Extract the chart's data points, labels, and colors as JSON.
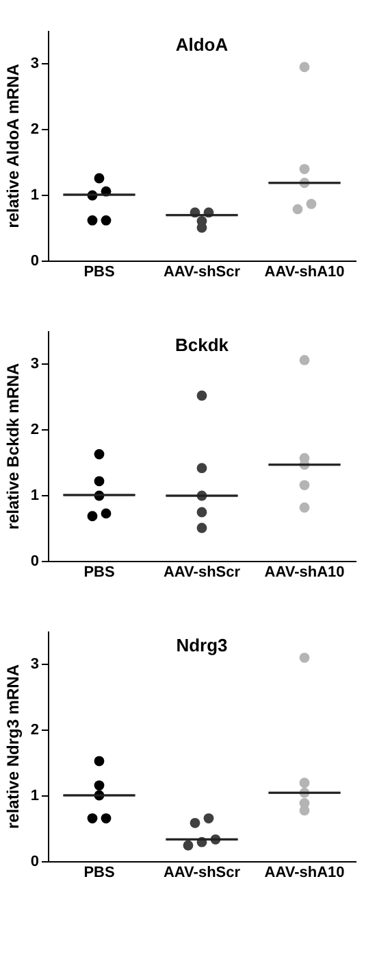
{
  "chart_data": [
    {
      "type": "scatter",
      "title": "AldoA",
      "ylabel": "relative AldoA mRNA",
      "categories": [
        "PBS",
        "AAV-shScr",
        "AAV-shA10"
      ],
      "ylim": [
        0,
        3.5
      ],
      "yticks": [
        0,
        1,
        2,
        3
      ],
      "grid": false,
      "legend": false,
      "marker": "circle",
      "series": [
        {
          "color": "#000000",
          "x": [
            "PBS",
            "PBS",
            "PBS",
            "PBS",
            "PBS"
          ],
          "values": [
            1.25,
            1.05,
            0.99,
            0.61,
            0.61
          ]
        },
        {
          "color": "#404040",
          "x": [
            "AAV-shScr",
            "AAV-shScr",
            "AAV-shScr",
            "AAV-shScr"
          ],
          "values": [
            0.73,
            0.73,
            0.5,
            0.6
          ]
        },
        {
          "color": "#b4b4b4",
          "x": [
            "AAV-shA10",
            "AAV-shA10",
            "AAV-shA10",
            "AAV-shA10",
            "AAV-shA10"
          ],
          "values": [
            2.94,
            1.39,
            1.18,
            0.78,
            0.86
          ]
        },
        {
          "type": "box",
          "color": "#222222",
          "boxes": [
            {
              "low": 1.0,
              "q1": 1.0,
              "median": 1.0,
              "q3": 1.0,
              "high": 1.0
            },
            {
              "low": 0.69,
              "q1": 0.69,
              "median": 0.69,
              "q3": 0.69,
              "high": 0.69
            },
            {
              "low": 1.18,
              "q1": 1.18,
              "median": 1.18,
              "q3": 1.18,
              "high": 1.18
            }
          ]
        }
      ]
    },
    {
      "type": "scatter",
      "title": "Bckdk",
      "ylabel": "relative Bckdk mRNA",
      "categories": [
        "PBS",
        "AAV-shScr",
        "AAV-shA10"
      ],
      "ylim": [
        0,
        3.5
      ],
      "yticks": [
        0,
        1,
        2,
        3
      ],
      "grid": false,
      "legend": false,
      "marker": "circle",
      "series": [
        {
          "color": "#000000",
          "x": [
            "PBS",
            "PBS",
            "PBS",
            "PBS",
            "PBS"
          ],
          "values": [
            1.62,
            1.21,
            0.99,
            0.68,
            0.72
          ]
        },
        {
          "color": "#404040",
          "x": [
            "AAV-shScr",
            "AAV-shScr",
            "AAV-shScr",
            "AAV-shScr",
            "AAV-shScr"
          ],
          "values": [
            2.51,
            1.41,
            0.99,
            0.74,
            0.5
          ]
        },
        {
          "color": "#b4b4b4",
          "x": [
            "AAV-shA10",
            "AAV-shA10",
            "AAV-shA10",
            "AAV-shA10",
            "AAV-shA10"
          ],
          "values": [
            3.05,
            1.56,
            1.46,
            1.15,
            0.81
          ]
        },
        {
          "type": "box",
          "color": "#222222",
          "boxes": [
            {
              "low": 1.0,
              "q1": 1.0,
              "median": 1.0,
              "q3": 1.0,
              "high": 1.0
            },
            {
              "low": 0.99,
              "q1": 0.99,
              "median": 0.99,
              "q3": 0.99,
              "high": 0.99
            },
            {
              "low": 1.46,
              "q1": 1.46,
              "median": 1.46,
              "q3": 1.46,
              "high": 1.46
            }
          ]
        }
      ]
    },
    {
      "type": "scatter",
      "title": "Ndrg3",
      "ylabel": "relative Ndrg3 mRNA",
      "categories": [
        "PBS",
        "AAV-shScr",
        "AAV-shA10"
      ],
      "ylim": [
        0,
        3.5
      ],
      "yticks": [
        0,
        1,
        2,
        3
      ],
      "grid": false,
      "legend": false,
      "marker": "circle",
      "series": [
        {
          "color": "#000000",
          "x": [
            "PBS",
            "PBS",
            "PBS",
            "PBS",
            "PBS"
          ],
          "values": [
            1.52,
            1.15,
            1.0,
            0.65,
            0.65
          ]
        },
        {
          "color": "#404040",
          "x": [
            "AAV-shScr",
            "AAV-shScr",
            "AAV-shScr",
            "AAV-shScr",
            "AAV-shScr"
          ],
          "values": [
            0.65,
            0.58,
            0.33,
            0.24,
            0.29
          ]
        },
        {
          "color": "#b4b4b4",
          "x": [
            "AAV-shA10",
            "AAV-shA10",
            "AAV-shA10",
            "AAV-shA10",
            "AAV-shA10"
          ],
          "values": [
            3.09,
            1.19,
            1.04,
            0.77,
            0.88
          ]
        },
        {
          "type": "box",
          "color": "#222222",
          "boxes": [
            {
              "low": 1.0,
              "q1": 1.0,
              "median": 1.0,
              "q3": 1.0,
              "high": 1.0
            },
            {
              "low": 0.33,
              "q1": 0.33,
              "median": 0.33,
              "q3": 0.33,
              "high": 0.33
            },
            {
              "low": 1.04,
              "q1": 1.04,
              "median": 1.04,
              "q3": 1.04,
              "high": 1.04
            }
          ]
        }
      ]
    }
  ]
}
